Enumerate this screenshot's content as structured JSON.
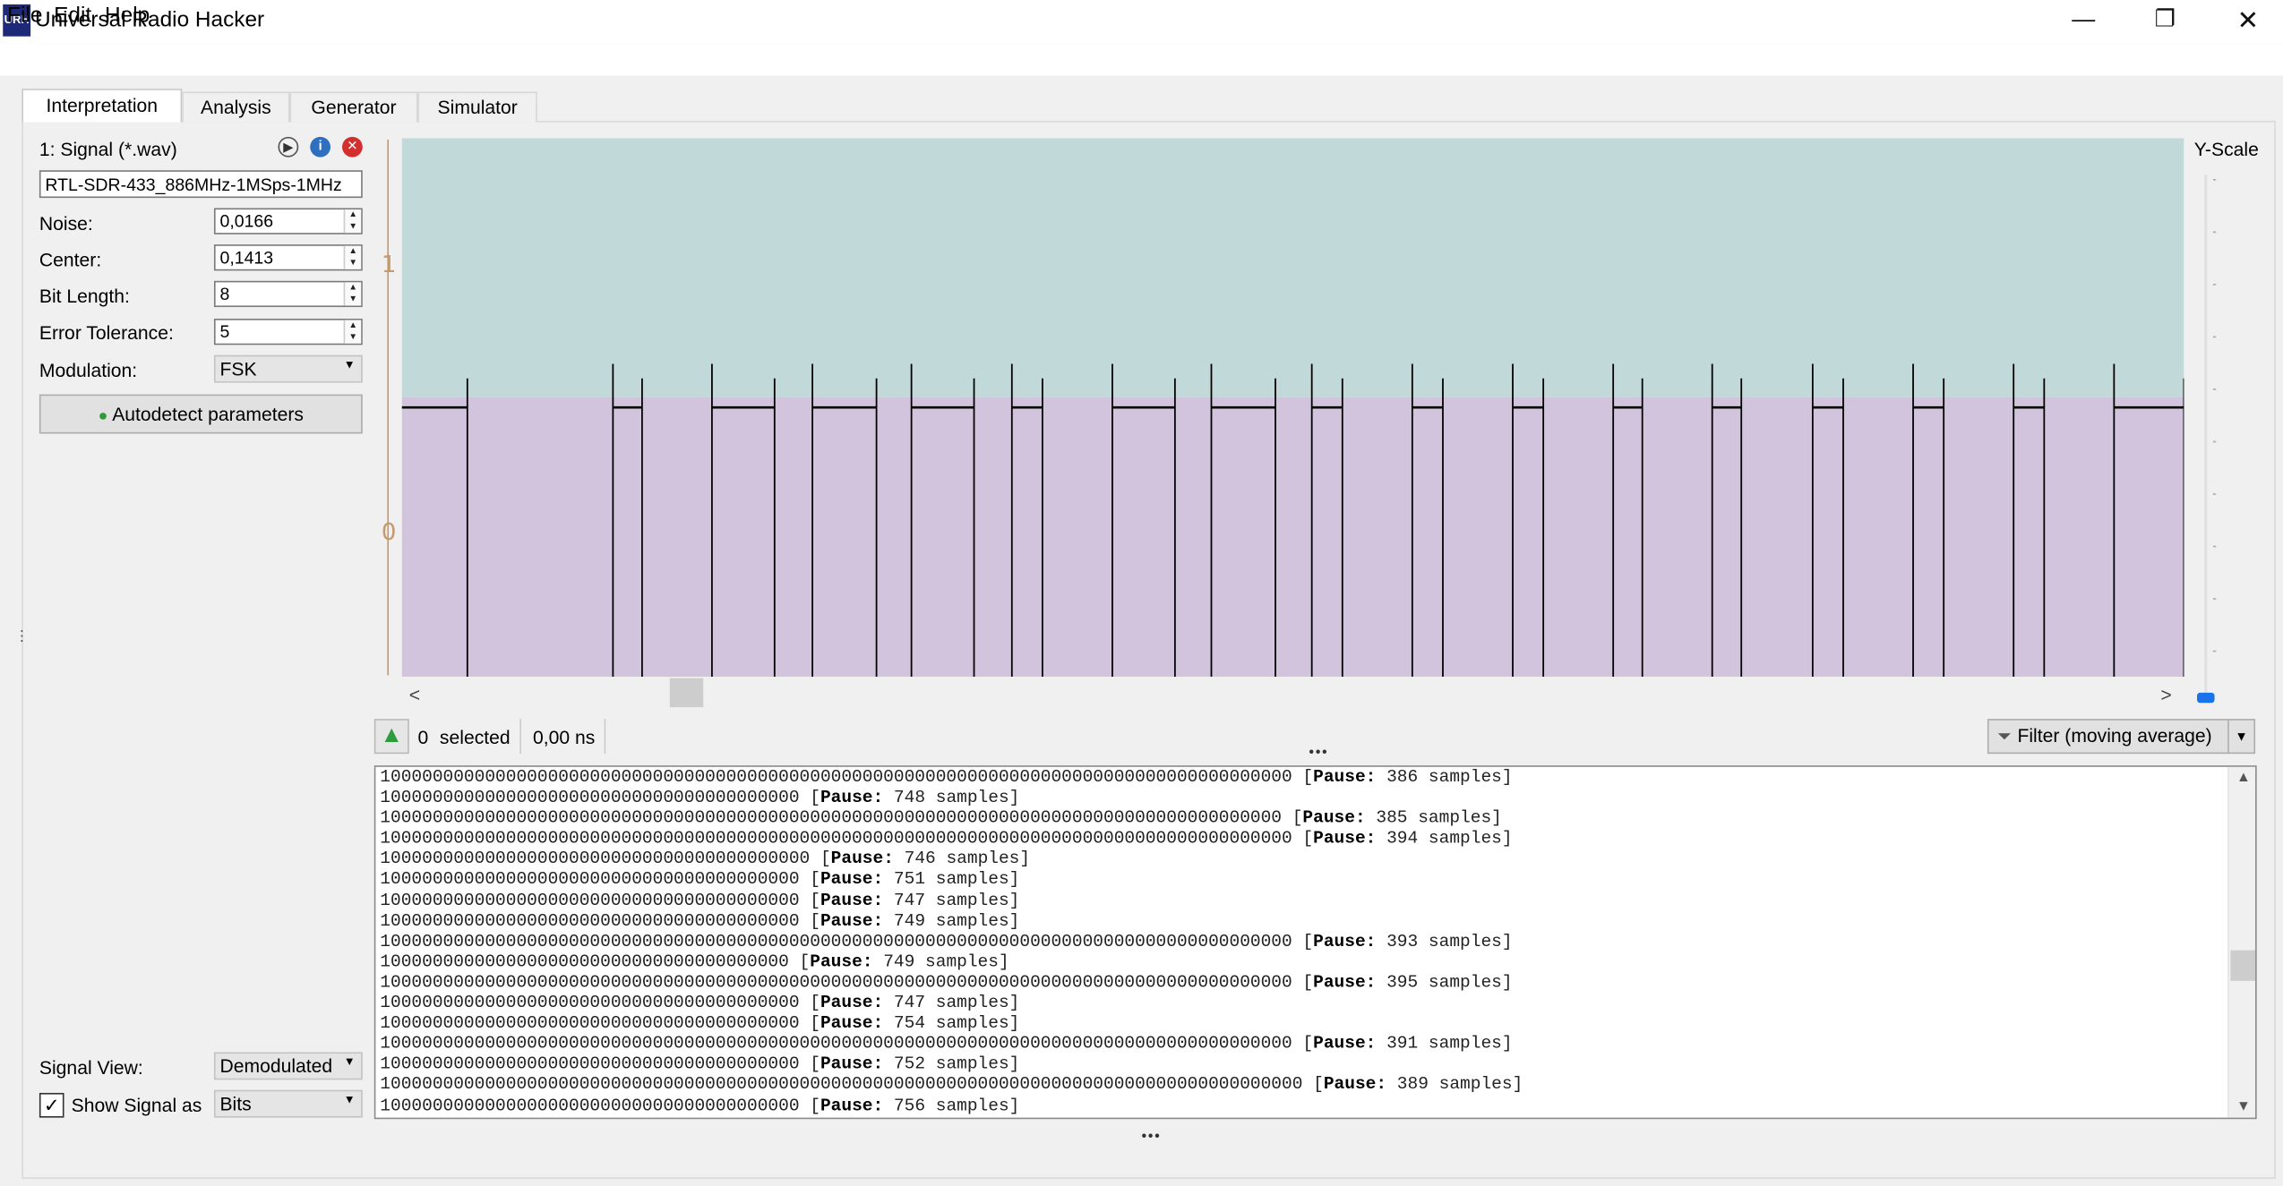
{
  "window": {
    "title": "Universal Radio Hacker",
    "logo_text": "URH",
    "min_glyph": "—",
    "max_glyph": "❐",
    "close_glyph": "✕"
  },
  "menu": {
    "file": "File",
    "edit": "Edit",
    "help": "Help"
  },
  "tabs": [
    "Interpretation",
    "Analysis",
    "Generator",
    "Simulator"
  ],
  "signal": {
    "header": "1:  Signal (*.wav)",
    "name": "RTL-SDR-433_886MHz-1MSps-1MHz",
    "noise_label": "Noise:",
    "noise_value": "0,0166",
    "center_label": "Center:",
    "center_value": "0,1413",
    "bit_length_label": "Bit Length:",
    "bit_length_value": "8",
    "error_tolerance_label": "Error Tolerance:",
    "error_tolerance_value": "5",
    "modulation_label": "Modulation:",
    "modulation_value": "FSK",
    "autodetect_label": "Autodetect parameters",
    "signal_view_label": "Signal View:",
    "signal_view_value": "Demodulated",
    "show_signal_as_label": "Show Signal as",
    "show_signal_as_value": "Bits",
    "show_signal_checked": true
  },
  "plot": {
    "y_ticks": [
      "1",
      "0"
    ],
    "yscale_label": "Y-Scale",
    "upper_color": "#c1d9d9",
    "lower_color": "#d3c4de",
    "trace_color": "#000000"
  },
  "selection": {
    "count": "0",
    "label": "selected",
    "duration": "0,00 ns",
    "filter_label": "Filter (moving average)"
  },
  "bits_output": {
    "pause_label": "Pause:",
    "unit": "samples",
    "lines": [
      {
        "bits": "100000000000000000000000000000000000000000000000000000000000000000000000000000000000000",
        "pause": "386"
      },
      {
        "bits": "1000000000000000000000000000000000000000",
        "pause": "748"
      },
      {
        "bits": "10000000000000000000000000000000000000000000000000000000000000000000000000000000000000",
        "pause": "385"
      },
      {
        "bits": "100000000000000000000000000000000000000000000000000000000000000000000000000000000000000",
        "pause": "394"
      },
      {
        "bits": "10000000000000000000000000000000000000000",
        "pause": "746"
      },
      {
        "bits": "1000000000000000000000000000000000000000",
        "pause": "751"
      },
      {
        "bits": "1000000000000000000000000000000000000000",
        "pause": "747"
      },
      {
        "bits": "1000000000000000000000000000000000000000",
        "pause": "749"
      },
      {
        "bits": "100000000000000000000000000000000000000000000000000000000000000000000000000000000000000",
        "pause": "393"
      },
      {
        "bits": "100000000000000000000000000000000000000",
        "pause": "749"
      },
      {
        "bits": "100000000000000000000000000000000000000000000000000000000000000000000000000000000000000",
        "pause": "395"
      },
      {
        "bits": "1000000000000000000000000000000000000000",
        "pause": "747"
      },
      {
        "bits": "1000000000000000000000000000000000000000",
        "pause": "754"
      },
      {
        "bits": "100000000000000000000000000000000000000000000000000000000000000000000000000000000000000",
        "pause": "391"
      },
      {
        "bits": "1000000000000000000000000000000000000000",
        "pause": "752"
      },
      {
        "bits": "1000000000000000000000000000000000000000000000000000000000000000000000000000000000000000",
        "pause": "389"
      },
      {
        "bits": "1000000000000000000000000000000000000000",
        "pause": "756"
      }
    ]
  }
}
